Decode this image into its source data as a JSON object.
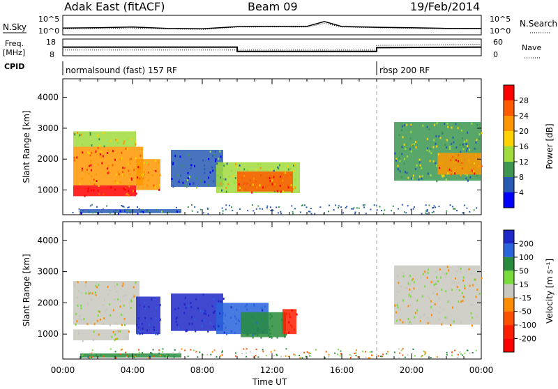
{
  "header": {
    "radar": "Adak East (fitACF)",
    "beam": "Beam 09",
    "date": "19/Feb/2014"
  },
  "top_panels": {
    "nsky_label": "N.Sky",
    "nsearch_label": "N.Search",
    "nsky_ticks": [
      "10^5",
      "10^0"
    ],
    "nsearch_ticks": [
      "10^5",
      "10^0"
    ],
    "freq_label": "Freq.",
    "freq_unit": "[MHz]",
    "freq_ticks": [
      "18",
      "8"
    ],
    "nave_label": "Nave",
    "nave_ticks": [
      "60",
      "0"
    ],
    "cpid_label": "CPID",
    "cpid_segments": [
      {
        "name": "normalsound (fast) 157 RF",
        "start_hour": 0,
        "end_hour": 18
      },
      {
        "name": "rbsp 200 RF",
        "start_hour": 18,
        "end_hour": 24
      }
    ]
  },
  "time_axis": {
    "label": "Time UT",
    "ticks": [
      "00:00",
      "04:00",
      "08:00",
      "12:00",
      "16:00",
      "20:00",
      "00:00"
    ]
  },
  "colorbars": {
    "power": {
      "label": "Power [dB]",
      "ticks": [
        "28",
        "24",
        "20",
        "16",
        "12",
        "8",
        "4"
      ],
      "colors": [
        "#ff0000",
        "#ff5a00",
        "#ff9600",
        "#ffd200",
        "#a0dc3c",
        "#3c9650",
        "#285ab4",
        "#0000ff"
      ]
    },
    "velocity": {
      "label": "Velocity [m s⁻¹]",
      "ticks": [
        "200",
        "100",
        "50",
        "15",
        "-15",
        "-50",
        "-100",
        "-200"
      ],
      "colors": [
        "#1e28c8",
        "#2864dc",
        "#288c3c",
        "#78dc3c",
        "#c8c8c0",
        "#ff8c00",
        "#ff5000",
        "#ff1e00",
        "#ff0000"
      ]
    }
  },
  "chart_data": [
    {
      "type": "line",
      "title": "N.Sky / N.Search",
      "x": [
        0,
        2,
        4,
        6,
        8,
        10,
        12,
        14,
        15,
        16,
        18,
        20,
        22,
        24
      ],
      "series": [
        {
          "name": "N.Sky",
          "values": [
            50,
            60,
            90,
            40,
            30,
            120,
            150,
            140,
            3000,
            130,
            80,
            60,
            40,
            40
          ]
        },
        {
          "name": "N.Search",
          "values": [
            30,
            40,
            50,
            30,
            20,
            90,
            100,
            90,
            1000,
            90,
            60,
            40,
            30,
            30
          ]
        }
      ],
      "ylabel": "N.Sky",
      "ylim": [
        1,
        100000
      ],
      "yscale": "log"
    },
    {
      "type": "line",
      "title": "Freq. / Nave",
      "x": [
        0,
        10,
        10,
        18,
        18,
        24
      ],
      "series": [
        {
          "name": "Freq. [MHz]",
          "values": [
            13.2,
            13.2,
            10.4,
            10.4,
            12.8,
            13.2
          ]
        },
        {
          "name": "Nave",
          "values": [
            20,
            20,
            20,
            20,
            38,
            42
          ]
        }
      ],
      "ylim": [
        8,
        18
      ]
    },
    {
      "type": "heatmap",
      "title": "Power",
      "xlabel": "Time UT",
      "ylabel": "Slant Range [km]",
      "xlim": [
        0,
        24
      ],
      "ylim": [
        200,
        4600
      ],
      "yticks": [
        1000,
        2000,
        3000,
        4000
      ],
      "regions": [
        {
          "t0": 0.6,
          "t1": 4.2,
          "r0": 800,
          "r1": 1150,
          "power_db": 30
        },
        {
          "t0": 0.6,
          "t1": 4.6,
          "r0": 1150,
          "r1": 2400,
          "power_db": 24
        },
        {
          "t0": 0.6,
          "t1": 4.2,
          "r0": 2400,
          "r1": 2900,
          "power_db": 16
        },
        {
          "t0": 4.2,
          "t1": 5.6,
          "r0": 1000,
          "r1": 2000,
          "power_db": 22
        },
        {
          "t0": 6.2,
          "t1": 9.2,
          "r0": 1100,
          "r1": 2300,
          "power_db": 6
        },
        {
          "t0": 8.8,
          "t1": 13.6,
          "r0": 900,
          "r1": 1900,
          "power_db": 14
        },
        {
          "t0": 10.0,
          "t1": 13.2,
          "r0": 950,
          "r1": 1600,
          "power_db": 26
        },
        {
          "t0": 19.0,
          "t1": 24.0,
          "r0": 1300,
          "r1": 3200,
          "power_db": 12
        },
        {
          "t0": 21.5,
          "t1": 24.0,
          "r0": 1500,
          "r1": 2200,
          "power_db": 24
        },
        {
          "t0": 1.0,
          "t1": 6.8,
          "r0": 250,
          "r1": 380,
          "power_db": 5
        }
      ]
    },
    {
      "type": "heatmap",
      "title": "Velocity",
      "xlabel": "Time UT",
      "ylabel": "Slant Range [km]",
      "xlim": [
        0,
        24
      ],
      "ylim": [
        200,
        4600
      ],
      "yticks": [
        1000,
        2000,
        3000,
        4000
      ],
      "regions": [
        {
          "t0": 0.6,
          "t1": 4.4,
          "r0": 1300,
          "r1": 2700,
          "velocity": 0
        },
        {
          "t0": 0.6,
          "t1": 3.8,
          "r0": 800,
          "r1": 1150,
          "velocity": 0
        },
        {
          "t0": 4.2,
          "t1": 5.6,
          "r0": 1000,
          "r1": 2200,
          "velocity": 220
        },
        {
          "t0": 6.2,
          "t1": 9.2,
          "r0": 1100,
          "r1": 2300,
          "velocity": 220
        },
        {
          "t0": 8.8,
          "t1": 11.8,
          "r0": 1000,
          "r1": 2000,
          "velocity": 180
        },
        {
          "t0": 10.2,
          "t1": 12.8,
          "r0": 900,
          "r1": 1700,
          "velocity": 80
        },
        {
          "t0": 12.6,
          "t1": 13.4,
          "r0": 1000,
          "r1": 1800,
          "velocity": -200
        },
        {
          "t0": 19.0,
          "t1": 24.0,
          "r0": 1300,
          "r1": 3200,
          "velocity": 0
        },
        {
          "t0": 1.0,
          "t1": 6.8,
          "r0": 250,
          "r1": 380,
          "velocity": 80
        }
      ]
    }
  ]
}
